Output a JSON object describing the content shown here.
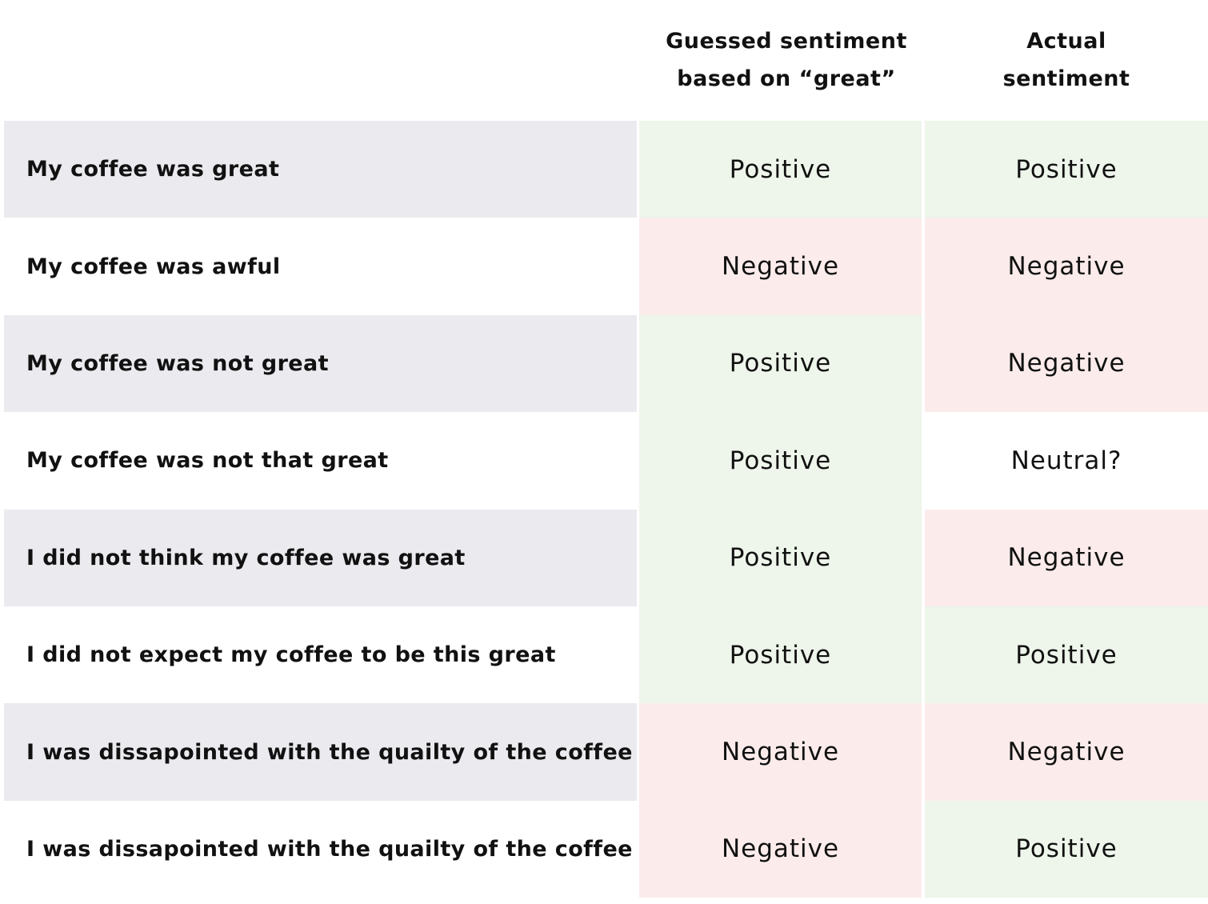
{
  "header": {
    "guessed_line1": "Guessed sentiment",
    "guessed_line2": "based on “great”",
    "actual_line1": "Actual",
    "actual_line2": "sentiment"
  },
  "colors": {
    "positive": "#eef5ea",
    "negative": "#fbeceb",
    "neutral": "#ffffff",
    "row_shade": "#ebeaef"
  },
  "rows": [
    {
      "sentence": "My coffee was great",
      "guessed": "Positive",
      "actual": "Positive"
    },
    {
      "sentence": "My coffee was awful",
      "guessed": "Negative",
      "actual": "Negative"
    },
    {
      "sentence": "My coffee was not great",
      "guessed": "Positive",
      "actual": "Negative"
    },
    {
      "sentence": "My coffee was not that great",
      "guessed": "Positive",
      "actual": "Neutral?"
    },
    {
      "sentence": "I did not think my coffee was great",
      "guessed": "Positive",
      "actual": "Negative"
    },
    {
      "sentence": "I did not expect my coffee to be this great",
      "guessed": "Positive",
      "actual": "Positive"
    },
    {
      "sentence": "I was dissapointed with the quailty of the coffee",
      "guessed": "Negative",
      "actual": "Negative"
    },
    {
      "sentence": "I was dissapointed with the quailty of the coffee",
      "guessed": "Negative",
      "actual": "Positive"
    }
  ]
}
